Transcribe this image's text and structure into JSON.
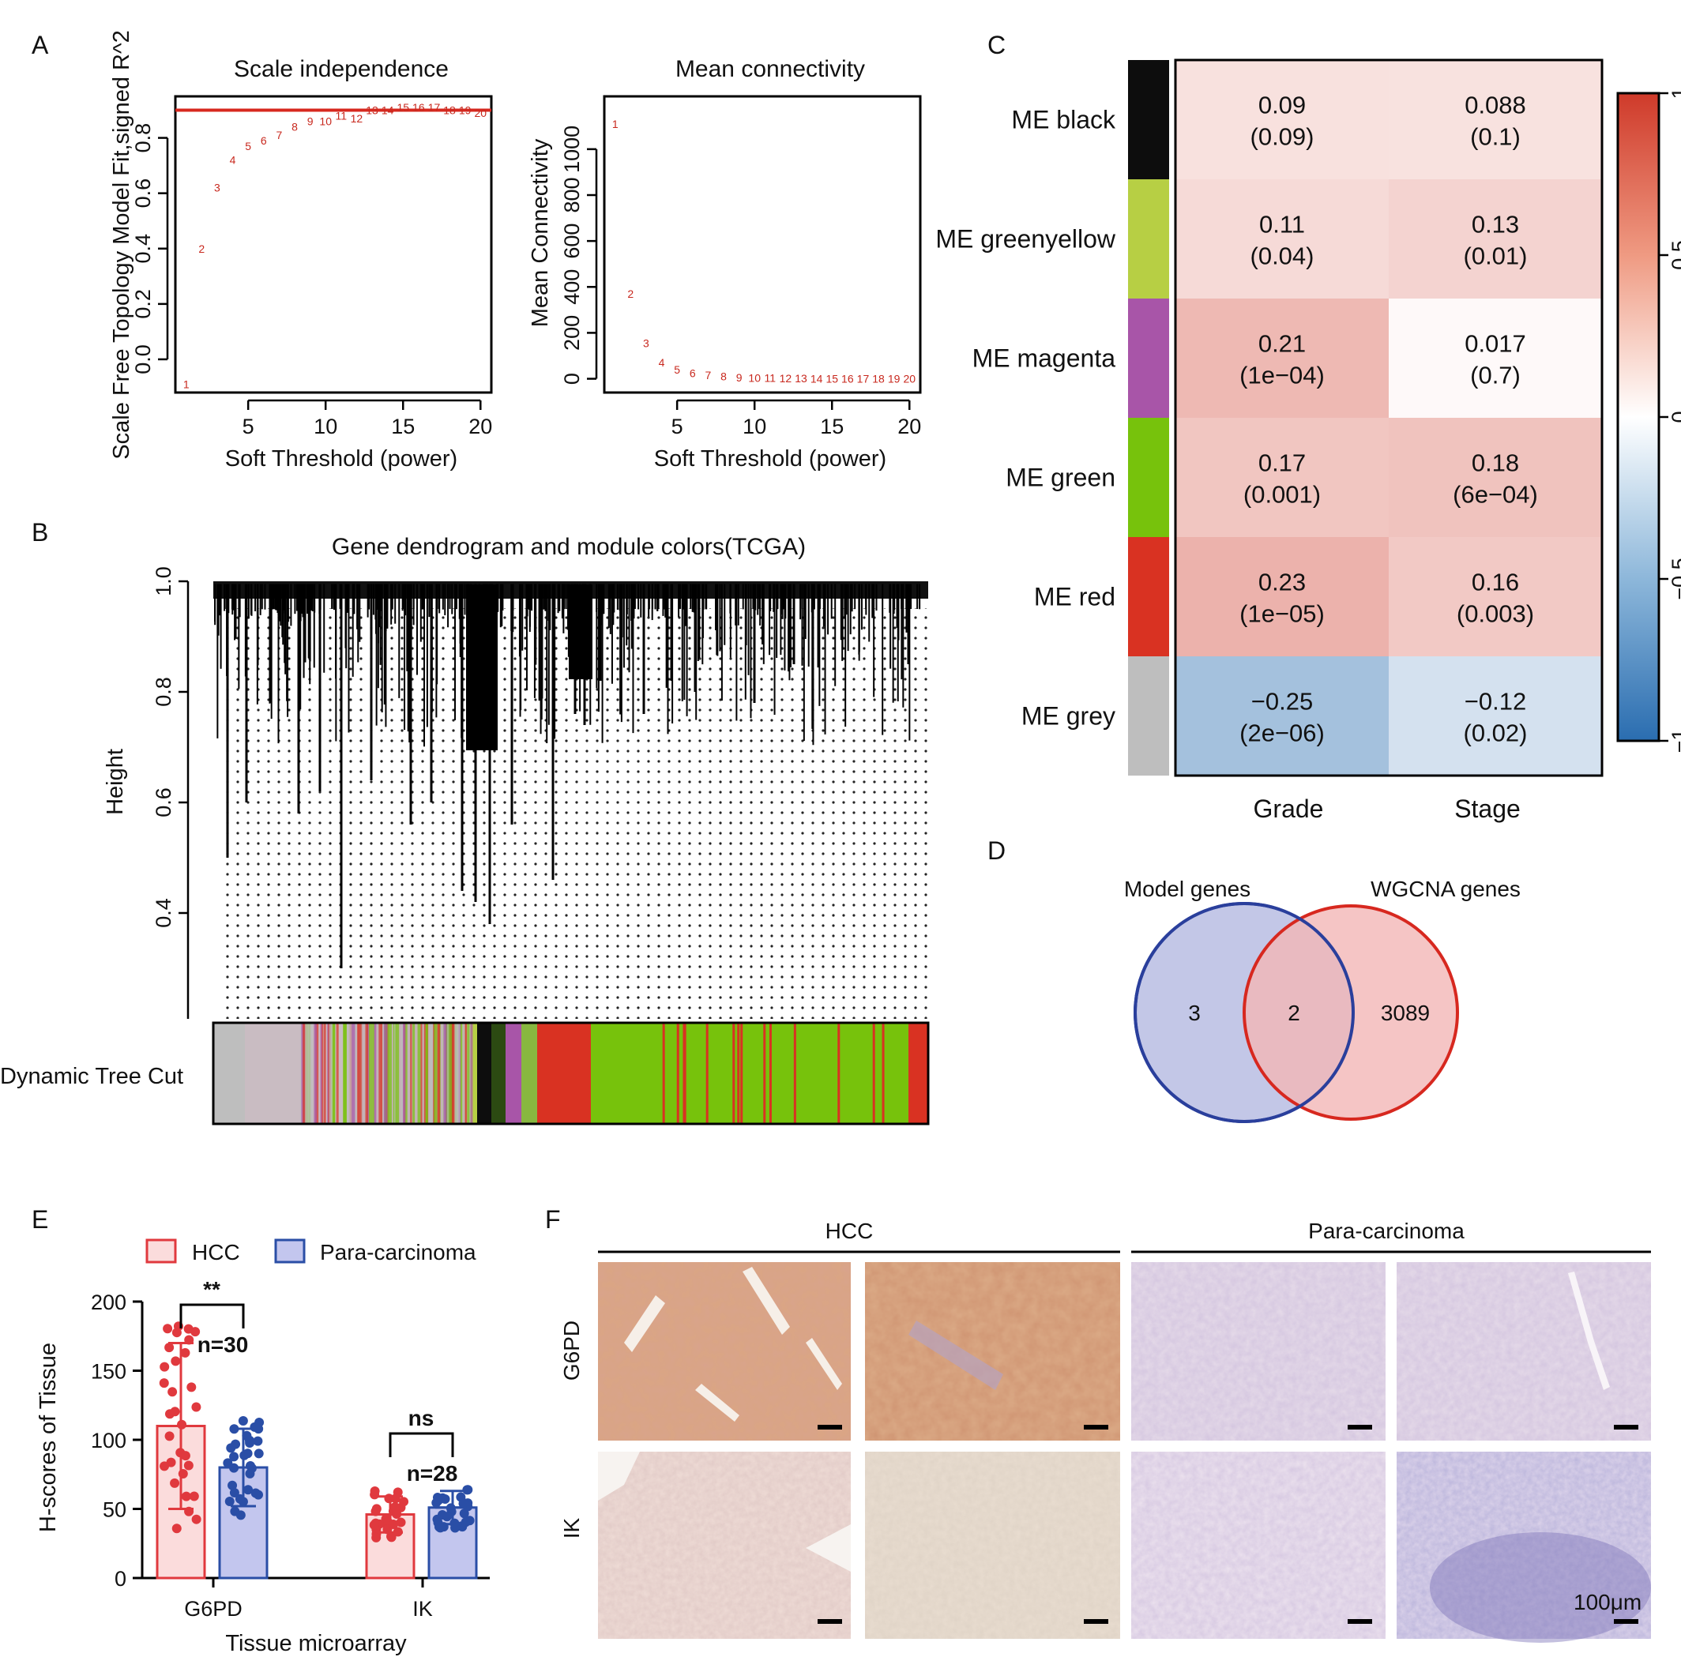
{
  "panel_labels": [
    "A",
    "B",
    "C",
    "D",
    "E",
    "F"
  ],
  "chart_data": [
    {
      "type": "scatter",
      "panel": "A",
      "title": "Scale independence",
      "xlabel": "Soft Threshold (power)",
      "ylabel": "Scale Free Topology Model Fit,signed R^2",
      "xlim": [
        0.3,
        20.7
      ],
      "ylim": [
        -0.12,
        0.95
      ],
      "xticks": [
        "5",
        "10",
        "15",
        "20"
      ],
      "yticks": [
        "0.0",
        "0.2",
        "0.4",
        "0.6",
        "0.8"
      ],
      "point_labels": [
        "1",
        "2",
        "3",
        "4",
        "5",
        "6",
        "7",
        "8",
        "9",
        "10",
        "11",
        "12",
        "13",
        "14",
        "15",
        "16",
        "17",
        "18",
        "19",
        "20"
      ],
      "x": [
        1,
        2,
        3,
        4,
        5,
        6,
        7,
        8,
        9,
        10,
        11,
        12,
        13,
        14,
        15,
        16,
        17,
        18,
        19,
        20
      ],
      "y": [
        -0.09,
        0.4,
        0.62,
        0.72,
        0.77,
        0.79,
        0.81,
        0.84,
        0.86,
        0.86,
        0.88,
        0.87,
        0.9,
        0.9,
        0.91,
        0.91,
        0.91,
        0.9,
        0.9,
        0.89
      ],
      "hline": 0.9,
      "hline_color": "#d7281f"
    },
    {
      "type": "scatter",
      "panel": "A",
      "title": "Mean connectivity",
      "xlabel": "Soft Threshold (power)",
      "ylabel": "Mean Connectivity",
      "xlim": [
        0.3,
        20.7
      ],
      "ylim": [
        -60,
        1230
      ],
      "xticks": [
        "5",
        "10",
        "15",
        "20"
      ],
      "yticks": [
        "0",
        "200",
        "400",
        "600",
        "800",
        "1000"
      ],
      "point_labels": [
        "1",
        "2",
        "3",
        "4",
        "5",
        "6",
        "7",
        "8",
        "9",
        "10",
        "11",
        "12",
        "13",
        "14",
        "15",
        "16",
        "17",
        "18",
        "19",
        "20"
      ],
      "x": [
        1,
        2,
        3,
        4,
        5,
        6,
        7,
        8,
        9,
        10,
        11,
        12,
        13,
        14,
        15,
        16,
        17,
        18,
        19,
        20
      ],
      "y": [
        1110,
        370,
        155,
        70,
        40,
        25,
        15,
        10,
        6,
        4,
        3,
        2,
        2,
        1,
        1,
        1,
        1,
        1,
        1,
        1
      ]
    },
    {
      "type": "dendrogram",
      "panel": "B",
      "title": "Gene dendrogram and module colors(TCGA)",
      "ylabel": "Height",
      "ylim": [
        0.2,
        1.0
      ],
      "yticks": [
        "0.4",
        "0.6",
        "0.8",
        "1.0"
      ],
      "colorbar_label": "Dynamic Tree Cut",
      "module_colors": [
        "#bebebe",
        "#b7cf44",
        "#0d0d0d",
        "#a855a8",
        "#d93222",
        "#77c20c"
      ]
    },
    {
      "type": "heatmap",
      "panel": "C",
      "rows": [
        "ME black",
        "ME greenyellow",
        "ME magenta",
        "ME green",
        "ME red",
        "ME grey"
      ],
      "row_colors": [
        "#0d0d0d",
        "#b7cf44",
        "#a855a8",
        "#77c20c",
        "#d93222",
        "#bebebe"
      ],
      "columns": [
        "Grade",
        "Stage"
      ],
      "values": [
        [
          0.09,
          0.088
        ],
        [
          0.11,
          0.13
        ],
        [
          0.21,
          0.017
        ],
        [
          0.17,
          0.18
        ],
        [
          0.23,
          0.16
        ],
        [
          -0.25,
          -0.12
        ]
      ],
      "value_labels": [
        [
          "0.09",
          "0.088"
        ],
        [
          "0.11",
          "0.13"
        ],
        [
          "0.21",
          "0.017"
        ],
        [
          "0.17",
          "0.18"
        ],
        [
          "0.23",
          "0.16"
        ],
        [
          "−0.25",
          "−0.12"
        ]
      ],
      "pvalue_labels": [
        [
          "(0.09)",
          "(0.1)"
        ],
        [
          "(0.04)",
          "(0.01)"
        ],
        [
          "(1e−04)",
          "(0.7)"
        ],
        [
          "(0.001)",
          "(6e−04)"
        ],
        [
          "(1e−05)",
          "(0.003)"
        ],
        [
          "(2e−06)",
          "(0.02)"
        ]
      ],
      "scale_ticks": [
        "1",
        "0.5",
        "0",
        "−0.5",
        "−1"
      ],
      "scale_range": [
        -1,
        1
      ]
    },
    {
      "type": "venn",
      "panel": "D",
      "sets": [
        {
          "name": "Model genes",
          "only": "3",
          "color": "#2a3f9c"
        },
        {
          "name": "WGCNA genes",
          "only": "3089",
          "color": "#d7281f"
        }
      ],
      "intersection": "2"
    },
    {
      "type": "bar",
      "panel": "E",
      "xlabel": "Tissue microarray",
      "ylabel": "H-scores of Tissue",
      "ylim": [
        0,
        200
      ],
      "yticks": [
        "0",
        "50",
        "100",
        "150",
        "200"
      ],
      "categories": [
        "G6PD",
        "IK"
      ],
      "series": [
        {
          "name": "HCC",
          "values": [
            110,
            46
          ],
          "sd": [
            60,
            13
          ],
          "color": "#e0393e",
          "fill": "#fbdcdc"
        },
        {
          "name": "Para-carcinoma",
          "values": [
            80,
            51
          ],
          "sd": [
            28,
            12
          ],
          "color": "#2a4ea6",
          "fill": "#c3c6ee"
        }
      ],
      "annotations": [
        {
          "category": "G6PD",
          "significance": "**",
          "n": "n=30"
        },
        {
          "category": "IK",
          "significance": "ns",
          "n": "n=28"
        }
      ]
    }
  ],
  "panel_f": {
    "group_labels": [
      "HCC",
      "Para-carcinoma"
    ],
    "row_labels": [
      "G6PD",
      "IK"
    ],
    "scale_bar_label": "100μm"
  }
}
